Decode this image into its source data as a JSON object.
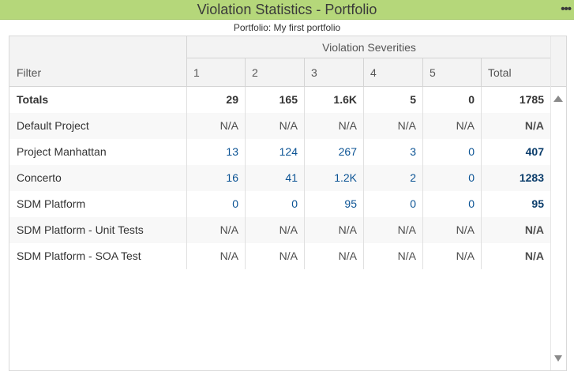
{
  "header": {
    "title": "Violation Statistics - Portfolio",
    "menu_icon": "more-dots-icon",
    "menu_glyph": "•••",
    "subtitle": "Portfolio: My first portfolio"
  },
  "table": {
    "filter_header": "Filter",
    "group_header": "Violation Severities",
    "columns": [
      "1",
      "2",
      "3",
      "4",
      "5",
      "Total"
    ],
    "totals": {
      "label": "Totals",
      "values": [
        "29",
        "165",
        "1.6K",
        "5",
        "0",
        "1785"
      ]
    },
    "rows": [
      {
        "label": "Default Project",
        "values": [
          "N/A",
          "N/A",
          "N/A",
          "N/A",
          "N/A",
          "N/A"
        ]
      },
      {
        "label": "Project Manhattan",
        "values": [
          "13",
          "124",
          "267",
          "3",
          "0",
          "407"
        ]
      },
      {
        "label": "Concerto",
        "values": [
          "16",
          "41",
          "1.2K",
          "2",
          "0",
          "1283"
        ]
      },
      {
        "label": "SDM Platform",
        "values": [
          "0",
          "0",
          "95",
          "0",
          "0",
          "95"
        ]
      },
      {
        "label": "SDM Platform - Unit Tests",
        "values": [
          "N/A",
          "N/A",
          "N/A",
          "N/A",
          "N/A",
          "N/A"
        ]
      },
      {
        "label": "SDM Platform - SOA Test",
        "values": [
          "N/A",
          "N/A",
          "N/A",
          "N/A",
          "N/A",
          "N/A"
        ]
      }
    ]
  },
  "colors": {
    "title_bar": "#b5d77a",
    "link_value": "#0b5394",
    "header_bg": "#f3f3f3"
  }
}
